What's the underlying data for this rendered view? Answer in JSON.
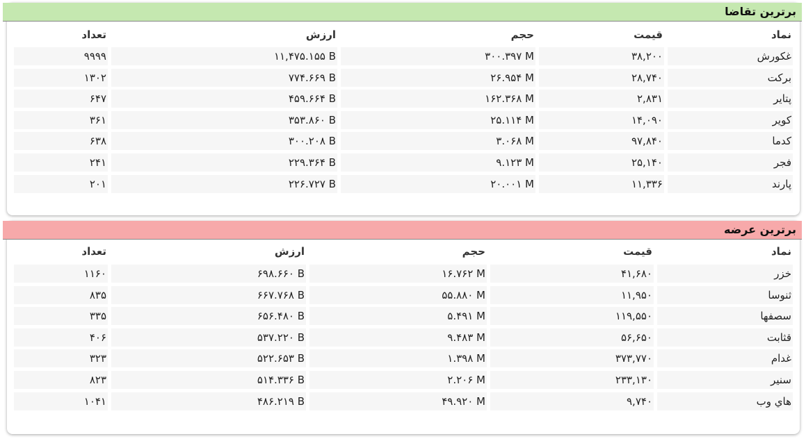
{
  "panels": [
    {
      "title": "برترین تقاضا",
      "headers": [
        "نماد",
        "قیمت",
        "حجم",
        "ارزش",
        "تعداد"
      ],
      "rows": [
        [
          "غکورش",
          "۳۸,۲۰۰",
          "۳۰۰.۳۹۷ M",
          "۱۱,۴۷۵.۱۵۵ B",
          "۹۹۹۹"
        ],
        [
          "برکت",
          "۲۸,۷۴۰",
          "۲۶.۹۵۴ M",
          "۷۷۴.۶۶۹ B",
          "۱۳۰۲"
        ],
        [
          "پتایر",
          "۲,۸۳۱",
          "۱۶۲.۳۶۸ M",
          "۴۵۹.۶۶۴ B",
          "۶۴۷"
        ],
        [
          "کویر",
          "۱۴,۰۹۰",
          "۲۵.۱۱۴ M",
          "۳۵۳.۸۶۰ B",
          "۳۶۱"
        ],
        [
          "کدما",
          "۹۷,۸۴۰",
          "۳.۰۶۸ M",
          "۳۰۰.۲۰۸ B",
          "۶۳۸"
        ],
        [
          "فجر",
          "۲۵,۱۴۰",
          "۹.۱۲۳ M",
          "۲۲۹.۳۶۴ B",
          "۲۴۱"
        ],
        [
          "پارند",
          "۱۱,۳۳۶",
          "۲۰.۰۰۱ M",
          "۲۲۶.۷۲۷ B",
          "۲۰۱"
        ]
      ]
    },
    {
      "title": "برترین عرضه",
      "headers": [
        "نماد",
        "قیمت",
        "حجم",
        "ارزش",
        "تعداد"
      ],
      "rows": [
        [
          "خزر",
          "۴۱,۶۸۰",
          "۱۶.۷۶۲ M",
          "۶۹۸.۶۶۰ B",
          "۱۱۶۰"
        ],
        [
          "ثنوسا",
          "۱۱,۹۵۰",
          "۵۵.۸۸۰ M",
          "۶۶۷.۷۶۸ B",
          "۸۳۵"
        ],
        [
          "سصفها",
          "۱۱۹,۵۵۰",
          "۵.۴۹۱ M",
          "۶۵۶.۴۸۰ B",
          "۳۳۵"
        ],
        [
          "قثابت",
          "۵۶,۶۵۰",
          "۹.۴۸۳ M",
          "۵۳۷.۲۲۰ B",
          "۴۰۶"
        ],
        [
          "غدام",
          "۳۷۳,۷۷۰",
          "۱.۳۹۸ M",
          "۵۲۲.۶۵۳ B",
          "۳۲۳"
        ],
        [
          "سنیر",
          "۲۳۳,۱۳۰",
          "۲.۲۰۶ M",
          "۵۱۴.۳۳۶ B",
          "۸۲۳"
        ],
        [
          "هاي وب",
          "۹,۷۴۰",
          "۴۹.۹۲۰ M",
          "۴۸۶.۲۱۹ B",
          "۱۰۴۱"
        ]
      ]
    }
  ]
}
